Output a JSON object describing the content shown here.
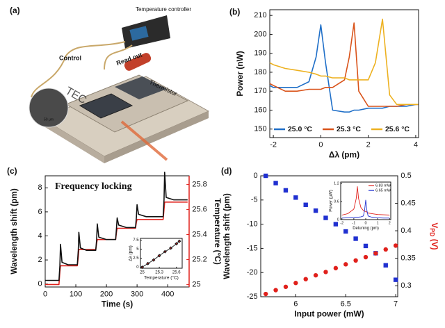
{
  "figure_a": {
    "panel_label": "(a)",
    "controller": "Temperature controller",
    "control": "Control",
    "readout": "Read out",
    "thermistor": "Thermistor",
    "tec": "TEC",
    "scale": "50 μm"
  },
  "chart_data": [
    {
      "type": "line",
      "panel_label": "(b)",
      "xlabel": "Δλ (pm)",
      "ylabel": "Power (nW)",
      "xlim": [
        -2.15,
        4.12
      ],
      "xticks": [
        -2,
        0,
        2,
        4
      ],
      "ylim": [
        145.5,
        213
      ],
      "yticks": [
        150,
        160,
        170,
        180,
        190,
        200,
        210
      ],
      "legend": "lower center",
      "x": [
        -2.15,
        -2,
        -1.5,
        -1,
        -0.5,
        -0.2,
        0,
        0.2,
        0.5,
        1,
        1.2,
        1.4,
        1.6,
        2,
        2.3,
        2.6,
        2.9,
        3.2,
        3.6,
        4,
        4.1
      ],
      "series": [
        {
          "name": "25.0 °C",
          "color": "#1f6fc8",
          "values": [
            173,
            172,
            172,
            172,
            175,
            188,
            205,
            185,
            160,
            159,
            159,
            160,
            160,
            161,
            161,
            161,
            162,
            162,
            162,
            163,
            163
          ]
        },
        {
          "name": "25.3 °C",
          "color": "#d9531a",
          "values": [
            174,
            173,
            170,
            170,
            171,
            171,
            171,
            172,
            172,
            176,
            188,
            206,
            170,
            162,
            162,
            162,
            162,
            162,
            163,
            163,
            163
          ]
        },
        {
          "name": "25.6 °C",
          "color": "#edb120",
          "values": [
            185,
            184,
            182,
            181,
            180,
            179,
            178,
            178,
            177,
            177,
            176,
            176,
            176,
            176,
            185,
            208,
            168,
            163,
            163,
            163,
            163
          ]
        }
      ]
    },
    {
      "type": "line",
      "panel_label": "(c)",
      "title": "Frequency locking",
      "xlabel": "Time (s)",
      "ylabel": "Wavelength shift (pm)",
      "y2label": "Temperature (°C)",
      "y2_color": "#e0201b",
      "xlim": [
        0,
        470
      ],
      "xticks": [
        0,
        100,
        200,
        300,
        400
      ],
      "ylim": [
        -0.25,
        9
      ],
      "yticks": [
        0,
        2,
        4,
        6,
        8
      ],
      "y2lim": [
        24.98,
        25.87
      ],
      "y2ticks": [
        25,
        25.2,
        25.4,
        25.6,
        25.8
      ],
      "x": [
        0,
        45,
        48,
        50,
        55,
        75,
        105,
        108,
        110,
        115,
        135,
        165,
        168,
        170,
        175,
        200,
        230,
        233,
        235,
        240,
        265,
        295,
        298,
        300,
        305,
        330,
        385,
        388,
        390,
        395,
        420,
        465
      ],
      "series": [
        {
          "color": "#e0201b",
          "axis": "y2",
          "values": [
            25.0,
            25.0,
            25.1,
            25.15,
            25.15,
            25.15,
            25.15,
            25.22,
            25.28,
            25.28,
            25.28,
            25.28,
            25.33,
            25.36,
            25.36,
            25.36,
            25.36,
            25.42,
            25.45,
            25.45,
            25.45,
            25.45,
            25.5,
            25.52,
            25.52,
            25.52,
            25.52,
            25.6,
            25.66,
            25.66,
            25.66,
            25.66
          ]
        },
        {
          "color": "#111111",
          "values": [
            0.3,
            0.3,
            1.5,
            3.3,
            1.8,
            1.6,
            1.6,
            2.8,
            4.3,
            3.0,
            2.8,
            2.8,
            3.7,
            5.0,
            3.9,
            3.7,
            3.7,
            4.7,
            5.5,
            4.9,
            4.7,
            4.7,
            5.6,
            6.6,
            5.8,
            5.6,
            5.6,
            7.0,
            9.3,
            7.2,
            7.0,
            7.0
          ]
        }
      ]
    },
    {
      "type": "scatter",
      "xlabel": "Temperature (°C)",
      "ylabel": "Δλ (pm)",
      "xlim": [
        24.97,
        25.7
      ],
      "xticks": [
        25,
        25.3,
        25.6
      ],
      "ylim": [
        -0.3,
        8
      ],
      "yticks": [
        0,
        2.5,
        5,
        7.5
      ],
      "x": [
        25,
        25.1,
        25.2,
        25.3,
        25.4,
        25.5,
        25.6,
        25.65
      ],
      "series": [
        {
          "color": "#111111",
          "marker": "diamond",
          "connect": true,
          "values": [
            0,
            1,
            2,
            3.2,
            4.3,
            5.3,
            6.5,
            7.2
          ]
        }
      ]
    },
    {
      "type": "scatter",
      "panel_label": "(d)",
      "xlabel": "Input power (mW)",
      "ylabel": "Wavelength shift (pm)",
      "ylabel_color": "#2030d0",
      "y2label": {
        "main": "V",
        "sub": "PD",
        "unit": " (V)"
      },
      "y2label_color": "#e0201b",
      "xlim": [
        5.65,
        7.02
      ],
      "xticks": [
        6,
        6.5,
        7
      ],
      "ylim": [
        -25,
        0
      ],
      "yticks": [
        0,
        -5,
        -10,
        -15,
        -20,
        -25
      ],
      "y2lim": [
        0.28,
        0.5
      ],
      "y2ticks": [
        0.3,
        0.35,
        0.4,
        0.45,
        0.5
      ],
      "x": [
        5.7,
        5.8,
        5.9,
        6.0,
        6.1,
        6.2,
        6.3,
        6.4,
        6.5,
        6.6,
        6.7,
        6.8,
        6.9,
        7.0
      ],
      "series": [
        {
          "color": "#2030d0",
          "marker": "square",
          "values": [
            0,
            -1.5,
            -3,
            -4.5,
            -6,
            -7.2,
            -8.7,
            -10,
            -11.5,
            -13,
            -14.5,
            -16,
            -18.5,
            -21.5
          ]
        },
        {
          "color": "#e0201b",
          "marker": "circle",
          "axis": "y2",
          "values": [
            0.285,
            0.292,
            0.298,
            0.305,
            0.312,
            0.319,
            0.325,
            0.332,
            0.339,
            0.346,
            0.352,
            0.359,
            0.366,
            0.373
          ]
        }
      ]
    },
    {
      "type": "line",
      "xlabel": "Detuning (pm)",
      "ylabel": "Power (μW)",
      "xlim": [
        -2.1,
        2.1
      ],
      "xticks": [
        -2,
        -1,
        0,
        1,
        2
      ],
      "ylim": [
        0,
        1.25
      ],
      "yticks": [
        0,
        0.6,
        1.2
      ],
      "legend": "upper right",
      "x": [
        -2,
        -1.5,
        -1,
        -0.8,
        -0.7,
        -0.6,
        -0.4,
        -0.2,
        -0.1,
        0,
        0.1,
        0.2,
        0.5,
        1,
        1.5,
        2
      ],
      "series": [
        {
          "name": "6.83 mW",
          "color": "#e0201b",
          "values": [
            0.15,
            0.2,
            0.35,
            0.7,
            1.1,
            0.7,
            0.4,
            0.3,
            0.28,
            0.27,
            0.25,
            0.22,
            0.2,
            0.17,
            0.16,
            0.15
          ]
        },
        {
          "name": "6.65 mW",
          "color": "#2030d0",
          "values": [
            0.05,
            0.06,
            0.07,
            0.08,
            0.08,
            0.08,
            0.09,
            0.12,
            0.3,
            0.65,
            0.3,
            0.12,
            0.08,
            0.06,
            0.05,
            0.05
          ]
        }
      ]
    }
  ]
}
